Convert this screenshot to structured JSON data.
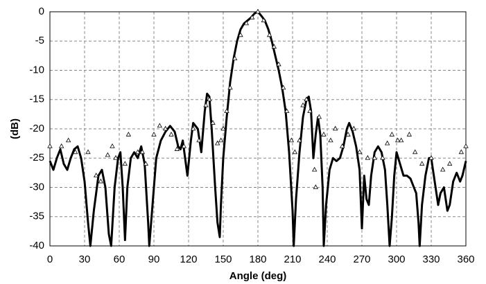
{
  "chart_data": {
    "type": "line",
    "xlabel": "Angle (deg)",
    "ylabel": "(dB)",
    "xlim": [
      0,
      360
    ],
    "xticks": [
      0,
      30,
      60,
      90,
      120,
      150,
      180,
      210,
      240,
      270,
      300,
      330,
      360
    ],
    "ylim": [
      -40,
      0
    ],
    "yticks": [
      0,
      -5,
      -10,
      -15,
      -20,
      -25,
      -30,
      -35,
      -40
    ],
    "grid": true,
    "grid_style": "dashed",
    "series": [
      {
        "color": "#000000",
        "marker": "none",
        "line": true,
        "x": [
          0,
          3,
          6,
          9,
          12,
          15,
          18,
          21,
          24,
          27,
          30,
          33,
          35,
          38,
          42,
          45,
          48,
          51,
          53,
          56,
          59,
          61,
          63,
          65,
          67,
          70,
          73,
          76,
          79,
          82,
          85,
          86,
          88,
          90,
          92,
          96,
          100,
          104,
          108,
          111,
          113,
          115,
          117,
          119,
          122,
          124,
          126,
          128,
          131,
          134,
          136,
          138,
          140,
          143,
          145,
          147,
          148,
          150,
          153,
          156,
          159,
          162,
          165,
          168,
          171,
          174,
          177,
          180,
          183,
          186,
          189,
          192,
          195,
          198,
          201,
          204,
          207,
          210,
          211,
          213,
          216,
          219,
          222,
          224,
          226,
          228,
          230,
          232,
          234,
          236,
          237,
          239,
          242,
          245,
          248,
          251,
          254,
          257,
          259,
          262,
          265,
          268,
          270,
          272,
          274,
          276,
          278,
          281,
          284,
          287,
          290,
          292,
          294,
          296,
          298,
          300,
          303,
          306,
          309,
          312,
          315,
          317,
          319,
          320,
          322,
          325,
          328,
          330,
          333,
          336,
          338,
          341,
          344,
          346,
          349,
          352,
          355,
          357,
          360
        ],
        "values": [
          -25.5,
          -27,
          -25,
          -23.5,
          -26,
          -27,
          -25,
          -23.5,
          -23,
          -25,
          -29,
          -36,
          -40,
          -34,
          -28,
          -27,
          -30,
          -38,
          -40,
          -30,
          -25,
          -24,
          -30,
          -39,
          -30,
          -25,
          -24,
          -25,
          -23,
          -26,
          -36,
          -40,
          -35,
          -30,
          -25,
          -22,
          -20.5,
          -19.5,
          -20.5,
          -23,
          -23.5,
          -22,
          -25,
          -28,
          -22,
          -19,
          -19.5,
          -20,
          -24,
          -17,
          -14,
          -14.5,
          -20,
          -30,
          -36,
          -38.5,
          -33,
          -25,
          -18,
          -12,
          -8,
          -5,
          -3,
          -2,
          -1.5,
          -1,
          -0.3,
          0,
          -0.7,
          -1.5,
          -3,
          -5,
          -7.5,
          -10,
          -13,
          -17,
          -24,
          -34,
          -40,
          -32,
          -24,
          -18,
          -15,
          -14.5,
          -17,
          -25,
          -21,
          -18,
          -21,
          -30,
          -40,
          -33,
          -27,
          -25,
          -25.5,
          -25,
          -23,
          -20,
          -19,
          -20.5,
          -23,
          -27,
          -37,
          -28,
          -32,
          -33,
          -28,
          -24,
          -23,
          -24,
          -27,
          -33,
          -40,
          -35,
          -28,
          -24,
          -26,
          -28,
          -28,
          -28.5,
          -30,
          -31,
          -36,
          -40,
          -33,
          -28,
          -25,
          -25,
          -29,
          -33,
          -31,
          -30,
          -34,
          -33,
          -29,
          -27.5,
          -29,
          -28,
          -25.5
        ]
      },
      {
        "color": "#000000",
        "marker": "triangle",
        "line": false,
        "x": [
          0,
          10,
          16,
          22,
          33,
          40,
          44,
          50,
          54,
          57,
          65,
          68,
          76,
          80,
          83,
          90,
          95,
          100,
          105,
          110,
          116,
          124,
          129,
          135,
          138,
          141,
          145,
          148,
          150,
          153,
          156,
          160,
          165,
          170,
          175,
          180,
          185,
          190,
          194,
          198,
          202,
          205,
          209,
          212,
          216,
          219,
          222,
          225,
          229,
          230,
          233,
          237,
          243,
          247,
          253,
          258,
          263,
          268,
          275,
          281,
          288,
          292,
          296,
          301,
          304,
          311,
          316,
          322,
          330,
          340,
          346,
          356,
          360
        ],
        "values": [
          -23,
          -23,
          -22,
          -24,
          -24,
          -28,
          -29,
          -24.5,
          -23,
          -25,
          -26,
          -21,
          -24,
          -24,
          -26,
          -21,
          -19.5,
          -20,
          -21,
          -23.5,
          -23,
          -20,
          -22,
          -16,
          -15,
          -19,
          -22.5,
          -22,
          -20,
          -17,
          -13,
          -8,
          -4,
          -2,
          -1,
          0,
          -1.5,
          -4,
          -6,
          -9,
          -13,
          -17,
          -22,
          -24,
          -22,
          -16,
          -15,
          -17,
          -27,
          -30,
          -18,
          -21,
          -22,
          -20,
          -23,
          -21,
          -20,
          -24,
          -25,
          -25,
          -25,
          -22.5,
          -21,
          -22,
          -22,
          -21,
          -24,
          -26,
          -25,
          -27,
          -26,
          -24,
          -23
        ]
      }
    ]
  }
}
